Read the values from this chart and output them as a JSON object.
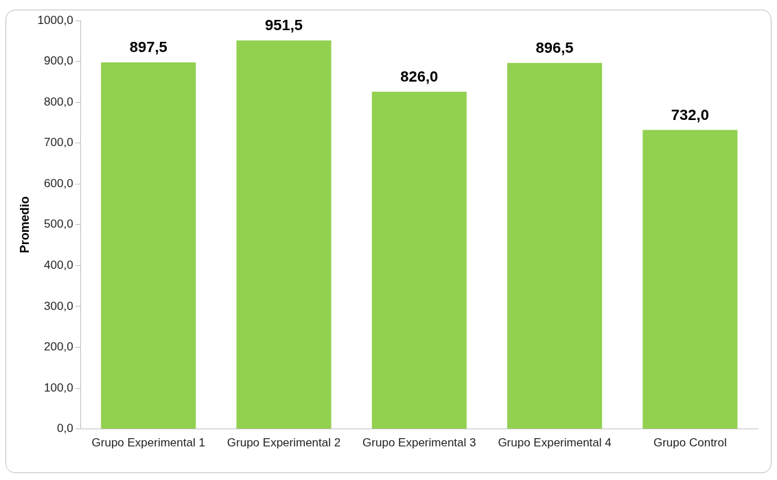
{
  "chart_data": {
    "type": "bar",
    "ylabel": "Promedio",
    "categories": [
      "Grupo Experimental 1",
      "Grupo Experimental 2",
      "Grupo Experimental 3",
      "Grupo Experimental 4",
      "Grupo Control"
    ],
    "values": [
      897.5,
      951.5,
      826.0,
      896.5,
      732.0
    ],
    "value_labels": [
      "897,5",
      "951,5",
      "826,0",
      "896,5",
      "732,0"
    ],
    "color": "#92d050",
    "ylim": [
      0,
      1000
    ],
    "yticks": [
      {
        "value": 0,
        "label": "0,0"
      },
      {
        "value": 100,
        "label": "100,0"
      },
      {
        "value": 200,
        "label": "200,0"
      },
      {
        "value": 300,
        "label": "300,0"
      },
      {
        "value": 400,
        "label": "400,0"
      },
      {
        "value": 500,
        "label": "500,0"
      },
      {
        "value": 600,
        "label": "600,0"
      },
      {
        "value": 700,
        "label": "700,0"
      },
      {
        "value": 800,
        "label": "800,0"
      },
      {
        "value": 900,
        "label": "900,0"
      },
      {
        "value": 1000,
        "label": "1000,0"
      }
    ],
    "grid": false,
    "legend": false
  }
}
